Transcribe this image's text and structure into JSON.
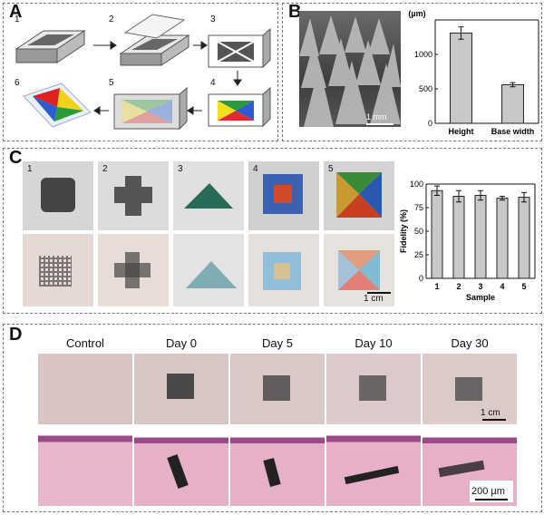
{
  "panels": {
    "A": {
      "label": "A",
      "steps": [
        "1",
        "2",
        "3",
        "4",
        "5",
        "6"
      ]
    },
    "B": {
      "label": "B",
      "scalebar": "1 mm"
    },
    "C": {
      "label": "C",
      "samples": [
        "1",
        "2",
        "3",
        "4",
        "5"
      ],
      "scalebar": "1 cm"
    },
    "D": {
      "label": "D",
      "columns": [
        "Control",
        "Day 0",
        "Day 5",
        "Day 10",
        "Day 30"
      ],
      "scalebar_top": "1 cm",
      "scalebar_bottom": "200 µm"
    }
  },
  "chart_data": [
    {
      "type": "bar",
      "categories": [
        "Height",
        "Base width"
      ],
      "values": [
        1310,
        560
      ],
      "errors": [
        90,
        30
      ],
      "ylabel": "(µm)",
      "ylim": [
        0,
        1500
      ],
      "yticks": [
        "0",
        "500",
        "1000"
      ]
    },
    {
      "type": "bar",
      "categories": [
        "1",
        "2",
        "3",
        "4",
        "5"
      ],
      "values": [
        93,
        87,
        88,
        85,
        86
      ],
      "errors": [
        5,
        6,
        5,
        2,
        5
      ],
      "xlabel": "Sample",
      "ylabel": "Fidelity (%)",
      "ylim": [
        0,
        100
      ],
      "yticks": [
        "0",
        "25",
        "50",
        "75",
        "100"
      ]
    }
  ]
}
